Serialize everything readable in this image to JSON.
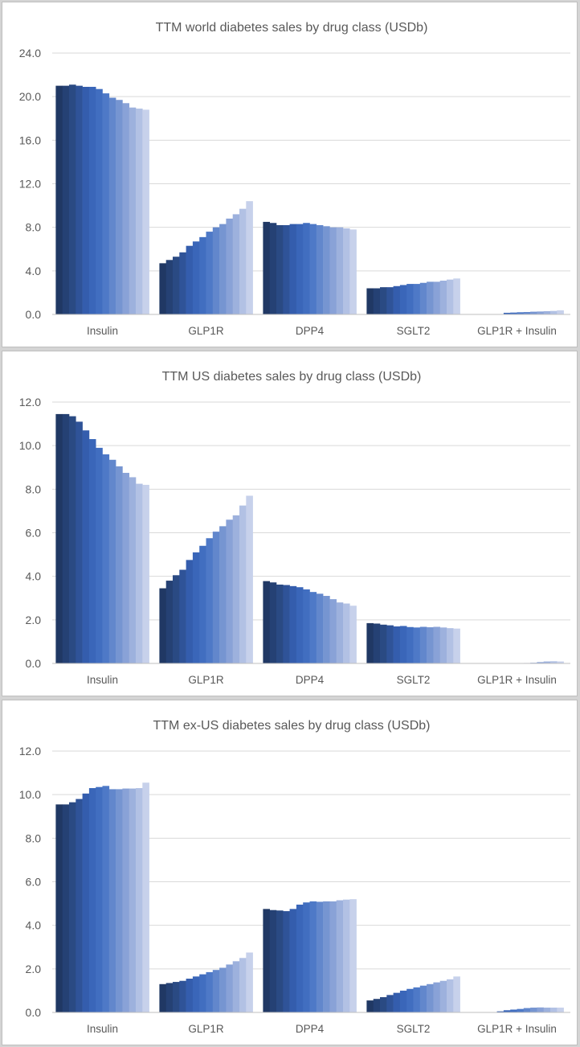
{
  "chart_data": [
    {
      "type": "bar",
      "title": "TTM world diabetes sales by drug class (USDb)",
      "categories": [
        "Insulin",
        "GLP1R",
        "DPP4",
        "SGLT2",
        "GLP1R + Insulin"
      ],
      "ylim": [
        0,
        24
      ],
      "yticks": [
        "0.0",
        "4.0",
        "8.0",
        "12.0",
        "16.0",
        "20.0",
        "24.0"
      ],
      "ytick_values": [
        0,
        4,
        8,
        12,
        16,
        20,
        24
      ],
      "grid": true,
      "legend": "none",
      "groups": [
        [
          21.0,
          21.0,
          21.1,
          21.0,
          20.9,
          20.9,
          20.7,
          20.3,
          19.9,
          19.7,
          19.4,
          19.0,
          18.9,
          18.8
        ],
        [
          4.7,
          5.0,
          5.3,
          5.7,
          6.3,
          6.7,
          7.1,
          7.6,
          8.0,
          8.3,
          8.8,
          9.2,
          9.7,
          10.4
        ],
        [
          8.5,
          8.4,
          8.2,
          8.2,
          8.3,
          8.3,
          8.4,
          8.3,
          8.2,
          8.1,
          8.0,
          8.0,
          7.9,
          7.8
        ],
        [
          2.4,
          2.4,
          2.5,
          2.5,
          2.6,
          2.7,
          2.8,
          2.8,
          2.9,
          3.0,
          3.0,
          3.1,
          3.2,
          3.3
        ],
        [
          0.0,
          0.0,
          0.0,
          0.0,
          0.0,
          0.15,
          0.17,
          0.2,
          0.22,
          0.25,
          0.27,
          0.3,
          0.32,
          0.38
        ]
      ]
    },
    {
      "type": "bar",
      "title": "TTM US diabetes sales by drug class (USDb)",
      "categories": [
        "Insulin",
        "GLP1R",
        "DPP4",
        "SGLT2",
        "GLP1R + Insulin"
      ],
      "ylim": [
        0,
        12
      ],
      "yticks": [
        "0.0",
        "2.0",
        "4.0",
        "6.0",
        "8.0",
        "10.0",
        "12.0"
      ],
      "ytick_values": [
        0,
        2,
        4,
        6,
        8,
        10,
        12
      ],
      "grid": true,
      "legend": "none",
      "groups": [
        [
          11.45,
          11.45,
          11.35,
          11.1,
          10.7,
          10.3,
          9.9,
          9.6,
          9.35,
          9.05,
          8.75,
          8.55,
          8.25,
          8.2
        ],
        [
          3.45,
          3.8,
          4.05,
          4.3,
          4.75,
          5.1,
          5.4,
          5.75,
          6.05,
          6.3,
          6.6,
          6.8,
          7.25,
          7.7
        ],
        [
          3.78,
          3.72,
          3.62,
          3.6,
          3.55,
          3.5,
          3.4,
          3.28,
          3.2,
          3.1,
          2.95,
          2.8,
          2.75,
          2.65
        ],
        [
          1.85,
          1.83,
          1.78,
          1.75,
          1.7,
          1.72,
          1.67,
          1.65,
          1.68,
          1.66,
          1.68,
          1.65,
          1.62,
          1.6
        ],
        [
          0.0,
          0.0,
          0.0,
          0.0,
          0.0,
          0.0,
          0.0,
          0.0,
          0.02,
          0.03,
          0.06,
          0.09,
          0.1,
          0.09
        ]
      ]
    },
    {
      "type": "bar",
      "title": "TTM ex-US diabetes sales by drug class (USDb)",
      "categories": [
        "Insulin",
        "GLP1R",
        "DPP4",
        "SGLT2",
        "GLP1R + Insulin"
      ],
      "ylim": [
        0,
        12
      ],
      "yticks": [
        "0.0",
        "2.0",
        "4.0",
        "6.0",
        "8.0",
        "10.0",
        "12.0"
      ],
      "ytick_values": [
        0,
        2,
        4,
        6,
        8,
        10,
        12
      ],
      "grid": true,
      "legend": "none",
      "groups": [
        [
          9.55,
          9.55,
          9.65,
          9.8,
          10.05,
          10.3,
          10.35,
          10.4,
          10.25,
          10.25,
          10.28,
          10.28,
          10.3,
          10.55
        ],
        [
          1.3,
          1.35,
          1.4,
          1.45,
          1.55,
          1.65,
          1.75,
          1.85,
          1.95,
          2.05,
          2.2,
          2.35,
          2.5,
          2.75
        ],
        [
          4.75,
          4.7,
          4.68,
          4.65,
          4.75,
          4.95,
          5.05,
          5.1,
          5.08,
          5.1,
          5.1,
          5.15,
          5.18,
          5.2
        ],
        [
          0.55,
          0.62,
          0.7,
          0.8,
          0.9,
          1.0,
          1.08,
          1.15,
          1.23,
          1.3,
          1.38,
          1.45,
          1.52,
          1.65
        ],
        [
          0.0,
          0.0,
          0.0,
          0.0,
          0.05,
          0.1,
          0.13,
          0.16,
          0.2,
          0.22,
          0.23,
          0.22,
          0.22,
          0.22
        ]
      ]
    }
  ],
  "colors": {
    "bar_gradient": [
      "#203864",
      "#2b4b86",
      "#3660b4",
      "#4472c4",
      "#6f90cf",
      "#9aaedc",
      "#c7d1eb"
    ],
    "grid": "#d9d9d9",
    "text": "#595959"
  }
}
